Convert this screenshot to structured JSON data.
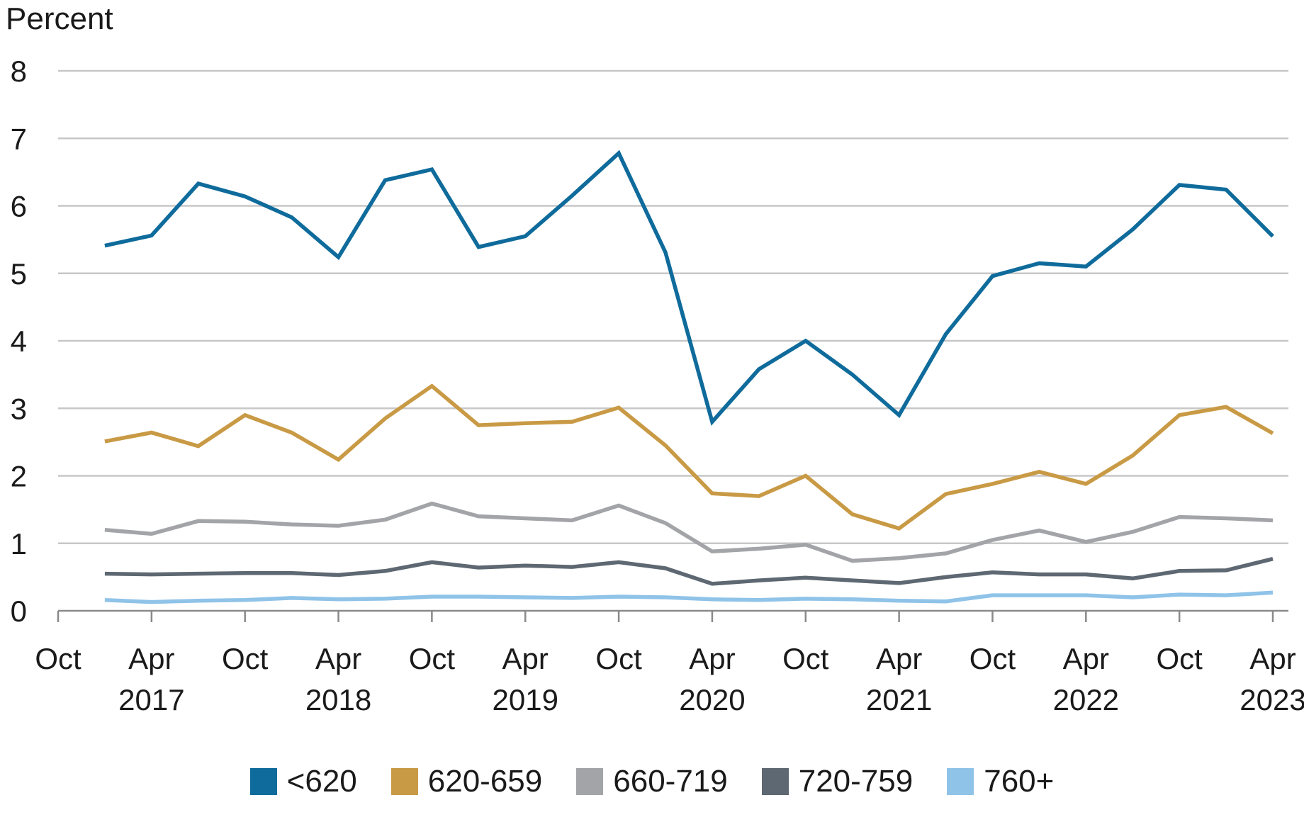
{
  "chart_data": {
    "type": "line",
    "ylabel": "Percent",
    "ylim": [
      0,
      8
    ],
    "yticks": [
      0,
      1,
      2,
      3,
      4,
      5,
      6,
      7,
      8
    ],
    "x_start": "2016-10",
    "x_end": "2023-05",
    "x_ticks": [
      {
        "date": "2016-10",
        "top": "Oct",
        "bottom": ""
      },
      {
        "date": "2017-04",
        "top": "Apr",
        "bottom": "2017"
      },
      {
        "date": "2017-10",
        "top": "Oct",
        "bottom": ""
      },
      {
        "date": "2018-04",
        "top": "Apr",
        "bottom": "2018"
      },
      {
        "date": "2018-10",
        "top": "Oct",
        "bottom": ""
      },
      {
        "date": "2019-04",
        "top": "Apr",
        "bottom": "2019"
      },
      {
        "date": "2019-10",
        "top": "Oct",
        "bottom": ""
      },
      {
        "date": "2020-04",
        "top": "Apr",
        "bottom": "2020"
      },
      {
        "date": "2020-10",
        "top": "Oct",
        "bottom": ""
      },
      {
        "date": "2021-04",
        "top": "Apr",
        "bottom": "2021"
      },
      {
        "date": "2021-10",
        "top": "Oct",
        "bottom": ""
      },
      {
        "date": "2022-04",
        "top": "Apr",
        "bottom": "2022"
      },
      {
        "date": "2022-10",
        "top": "Oct",
        "bottom": ""
      },
      {
        "date": "2023-04",
        "top": "Apr",
        "bottom": "2023"
      }
    ],
    "x": [
      "2017-01",
      "2017-04",
      "2017-07",
      "2017-10",
      "2018-01",
      "2018-04",
      "2018-07",
      "2018-10",
      "2019-01",
      "2019-04",
      "2019-07",
      "2019-10",
      "2020-01",
      "2020-04",
      "2020-07",
      "2020-10",
      "2021-01",
      "2021-04",
      "2021-07",
      "2021-10",
      "2022-01",
      "2022-04",
      "2022-07",
      "2022-10",
      "2023-01",
      "2023-04"
    ],
    "series": [
      {
        "name": "<620",
        "color": "#0f6b9b",
        "values": [
          5.41,
          5.56,
          6.33,
          6.14,
          5.83,
          5.24,
          6.38,
          6.54,
          5.39,
          5.55,
          6.15,
          6.78,
          5.31,
          2.8,
          3.58,
          4.0,
          3.5,
          2.9,
          4.1,
          4.96,
          5.15,
          5.1,
          5.65,
          6.31,
          6.24,
          5.55
        ]
      },
      {
        "name": "620-659",
        "color": "#c99a45",
        "values": [
          2.51,
          2.64,
          2.44,
          2.9,
          2.64,
          2.24,
          2.85,
          3.33,
          2.75,
          2.78,
          2.8,
          3.01,
          2.45,
          1.74,
          1.7,
          2.0,
          1.43,
          1.22,
          1.73,
          1.88,
          2.06,
          1.88,
          2.3,
          2.9,
          3.02,
          2.63
        ]
      },
      {
        "name": "660-719",
        "color": "#a3a4a8",
        "values": [
          1.2,
          1.14,
          1.33,
          1.32,
          1.28,
          1.26,
          1.35,
          1.59,
          1.4,
          1.37,
          1.34,
          1.56,
          1.3,
          0.88,
          0.92,
          0.98,
          0.74,
          0.78,
          0.85,
          1.05,
          1.19,
          1.02,
          1.17,
          1.39,
          1.37,
          1.34
        ]
      },
      {
        "name": "720-759",
        "color": "#5e6872",
        "values": [
          0.55,
          0.54,
          0.55,
          0.56,
          0.56,
          0.53,
          0.59,
          0.72,
          0.64,
          0.67,
          0.65,
          0.72,
          0.63,
          0.4,
          0.45,
          0.49,
          0.45,
          0.41,
          0.5,
          0.57,
          0.54,
          0.54,
          0.48,
          0.59,
          0.6,
          0.77
        ]
      },
      {
        "name": "760+",
        "color": "#8fc3e8",
        "values": [
          0.16,
          0.13,
          0.15,
          0.16,
          0.19,
          0.17,
          0.18,
          0.21,
          0.21,
          0.2,
          0.19,
          0.21,
          0.2,
          0.17,
          0.16,
          0.18,
          0.17,
          0.15,
          0.14,
          0.23,
          0.23,
          0.23,
          0.2,
          0.24,
          0.23,
          0.27
        ]
      }
    ],
    "grid": true,
    "legend_position": "bottom"
  }
}
